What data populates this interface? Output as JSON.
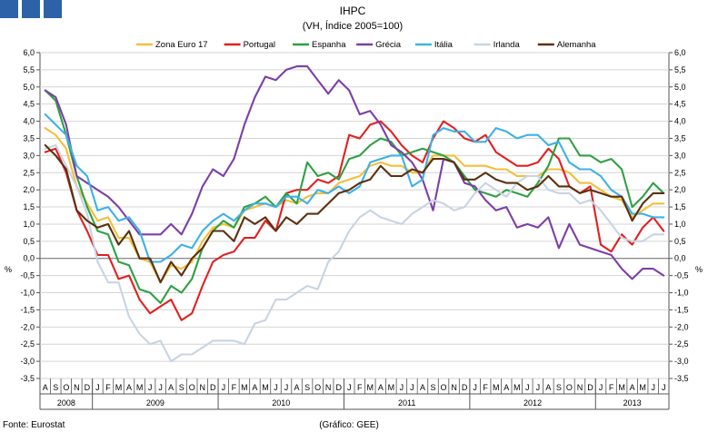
{
  "chart_data": {
    "type": "line",
    "title": "IHPC",
    "subtitle": "(VH, Índice 2005=100)",
    "ylabel_left": "%",
    "ylabel_right": "%",
    "ylim": [
      -3.5,
      6.0
    ],
    "yticks": [
      "-3,5",
      "-3,0",
      "-2,5",
      "-2,0",
      "-1,5",
      "-1,0",
      "-0,5",
      "0,0",
      "0,5",
      "1,0",
      "1,5",
      "2,0",
      "2,5",
      "3,0",
      "3,5",
      "4,0",
      "4,5",
      "5,0",
      "5,5",
      "6,0"
    ],
    "ytick_values": [
      -3.5,
      -3.0,
      -2.5,
      -2.0,
      -1.5,
      -1.0,
      -0.5,
      0,
      0.5,
      1.0,
      1.5,
      2.0,
      2.5,
      3.0,
      3.5,
      4.0,
      4.5,
      5.0,
      5.5,
      6.0
    ],
    "months": [
      "A",
      "S",
      "O",
      "N",
      "D",
      "J",
      "F",
      "M",
      "A",
      "M",
      "J",
      "J",
      "A",
      "S",
      "O",
      "N",
      "D",
      "J",
      "F",
      "M",
      "A",
      "M",
      "J",
      "J",
      "A",
      "S",
      "O",
      "N",
      "D",
      "J",
      "F",
      "M",
      "A",
      "M",
      "J",
      "J",
      "A",
      "S",
      "O",
      "N",
      "D",
      "J",
      "F",
      "M",
      "A",
      "M",
      "J",
      "J",
      "A",
      "S",
      "O",
      "N",
      "D",
      "J",
      "F",
      "M",
      "A",
      "M",
      "J",
      "J"
    ],
    "years": [
      {
        "label": "2008",
        "start": 0,
        "end": 4
      },
      {
        "label": "2009",
        "start": 5,
        "end": 16
      },
      {
        "label": "2010",
        "start": 17,
        "end": 28
      },
      {
        "label": "2011",
        "start": 29,
        "end": 40
      },
      {
        "label": "2012",
        "start": 41,
        "end": 52
      },
      {
        "label": "2013",
        "start": 53,
        "end": 59
      }
    ],
    "series": [
      {
        "name": "Zona Euro 17",
        "color": "#f2bf3a",
        "values": [
          3.8,
          3.6,
          3.2,
          2.1,
          1.6,
          1.1,
          1.2,
          0.6,
          0.6,
          0.0,
          -0.1,
          -0.7,
          -0.2,
          -0.3,
          -0.1,
          0.5,
          0.9,
          1.0,
          0.9,
          1.4,
          1.5,
          1.6,
          1.5,
          1.7,
          1.6,
          1.8,
          1.9,
          1.9,
          2.2,
          2.3,
          2.4,
          2.7,
          2.8,
          2.7,
          2.7,
          2.5,
          2.5,
          3.0,
          3.0,
          3.0,
          2.7,
          2.7,
          2.7,
          2.6,
          2.6,
          2.4,
          2.4,
          2.4,
          2.6,
          2.6,
          2.5,
          2.2,
          2.2,
          2.0,
          1.8,
          1.7,
          1.2,
          1.4,
          1.6,
          1.6
        ]
      },
      {
        "name": "Portugal",
        "color": "#e02020",
        "values": [
          3.1,
          3.2,
          2.5,
          1.4,
          0.8,
          0.1,
          0.1,
          -0.6,
          -0.5,
          -1.2,
          -1.6,
          -1.4,
          -1.2,
          -1.8,
          -1.6,
          -0.8,
          -0.1,
          0.1,
          0.2,
          0.6,
          0.6,
          1.1,
          0.8,
          1.9,
          2.0,
          2.0,
          2.3,
          2.2,
          2.4,
          3.6,
          3.5,
          3.9,
          4.0,
          3.7,
          3.3,
          3.0,
          2.8,
          3.5,
          4.0,
          3.8,
          3.5,
          3.4,
          3.6,
          3.1,
          2.9,
          2.7,
          2.7,
          2.8,
          3.2,
          2.9,
          2.1,
          1.9,
          2.1,
          0.4,
          0.2,
          0.7,
          0.4,
          0.9,
          1.2,
          0.8
        ]
      },
      {
        "name": "Espanha",
        "color": "#2ea043",
        "values": [
          4.9,
          4.6,
          3.6,
          2.4,
          1.5,
          0.8,
          0.7,
          -0.1,
          -0.2,
          -0.9,
          -1.0,
          -1.3,
          -0.8,
          -1.0,
          -0.6,
          0.3,
          0.8,
          1.1,
          0.9,
          1.5,
          1.6,
          1.8,
          1.5,
          1.9,
          1.6,
          2.8,
          2.4,
          2.5,
          2.3,
          2.9,
          3.0,
          3.3,
          3.5,
          3.4,
          3.0,
          3.1,
          3.2,
          3.1,
          3.0,
          2.8,
          2.4,
          2.0,
          1.9,
          1.8,
          2.0,
          1.9,
          1.8,
          2.2,
          2.7,
          3.5,
          3.5,
          3.0,
          3.0,
          2.8,
          2.9,
          2.6,
          1.5,
          1.8,
          2.2,
          1.9
        ]
      },
      {
        "name": "Grécia",
        "color": "#7b3fa6",
        "values": [
          4.9,
          4.7,
          3.9,
          2.4,
          2.2,
          2.0,
          1.8,
          1.5,
          1.1,
          0.7,
          0.7,
          0.7,
          1.0,
          0.7,
          1.3,
          2.1,
          2.6,
          2.4,
          2.9,
          3.9,
          4.7,
          5.3,
          5.2,
          5.5,
          5.6,
          5.6,
          5.2,
          4.8,
          5.2,
          4.9,
          4.2,
          4.3,
          3.9,
          3.3,
          3.1,
          2.8,
          2.3,
          1.4,
          2.9,
          2.8,
          2.2,
          2.1,
          1.7,
          1.4,
          1.5,
          0.9,
          1.0,
          0.9,
          1.2,
          0.3,
          1.0,
          0.4,
          0.3,
          0.2,
          0.1,
          -0.3,
          -0.6,
          -0.3,
          -0.3,
          -0.5
        ]
      },
      {
        "name": "Itália",
        "color": "#3db1e5",
        "values": [
          4.2,
          3.9,
          3.6,
          2.7,
          2.4,
          1.4,
          1.5,
          1.1,
          1.2,
          0.8,
          -0.1,
          -0.1,
          0.1,
          0.4,
          0.3,
          0.8,
          1.1,
          1.3,
          1.1,
          1.4,
          1.6,
          1.6,
          1.5,
          1.8,
          1.8,
          1.6,
          2.0,
          1.9,
          2.1,
          1.9,
          2.1,
          2.8,
          2.9,
          3.0,
          3.0,
          2.1,
          2.3,
          3.6,
          3.8,
          3.7,
          3.7,
          3.4,
          3.4,
          3.8,
          3.7,
          3.5,
          3.6,
          3.6,
          3.3,
          3.4,
          2.8,
          2.6,
          2.6,
          2.4,
          2.0,
          1.8,
          1.3,
          1.3,
          1.2,
          1.2
        ]
      },
      {
        "name": "Irlanda",
        "color": "#c8d4e2",
        "values": [
          3.2,
          3.3,
          2.7,
          2.1,
          1.3,
          -0.1,
          -0.7,
          -0.7,
          -1.7,
          -2.2,
          -2.5,
          -2.4,
          -3.0,
          -2.8,
          -2.8,
          -2.6,
          -2.4,
          -2.4,
          -2.4,
          -2.5,
          -1.9,
          -1.8,
          -1.2,
          -1.2,
          -1.0,
          -0.8,
          -0.9,
          -0.1,
          0.2,
          0.8,
          1.2,
          1.4,
          1.2,
          1.1,
          1.0,
          1.3,
          1.5,
          1.7,
          1.6,
          1.4,
          1.5,
          1.9,
          2.2,
          2.0,
          1.8,
          2.2,
          2.4,
          2.4,
          2.0,
          1.9,
          1.9,
          1.6,
          1.7,
          1.4,
          1.0,
          0.6,
          0.5,
          0.5,
          0.7,
          0.7
        ]
      },
      {
        "name": "Alemanha",
        "color": "#5a3010",
        "values": [
          3.3,
          3.0,
          2.6,
          1.4,
          1.1,
          0.9,
          1.0,
          0.4,
          0.8,
          0.0,
          0.0,
          -0.7,
          -0.1,
          -0.5,
          0.0,
          0.3,
          0.8,
          0.8,
          0.5,
          1.2,
          1.0,
          1.2,
          0.8,
          1.2,
          1.0,
          1.3,
          1.3,
          1.6,
          1.9,
          2.0,
          2.2,
          2.3,
          2.7,
          2.4,
          2.4,
          2.6,
          2.5,
          2.9,
          2.9,
          2.8,
          2.3,
          2.3,
          2.5,
          2.3,
          2.2,
          2.2,
          2.0,
          2.1,
          2.4,
          2.1,
          2.1,
          1.9,
          2.0,
          1.9,
          1.8,
          1.8,
          1.1,
          1.6,
          1.9,
          1.9
        ]
      }
    ]
  },
  "footer": {
    "source": "Fonte: Eurostat",
    "graphic": "(Gráfico: GEE)"
  }
}
